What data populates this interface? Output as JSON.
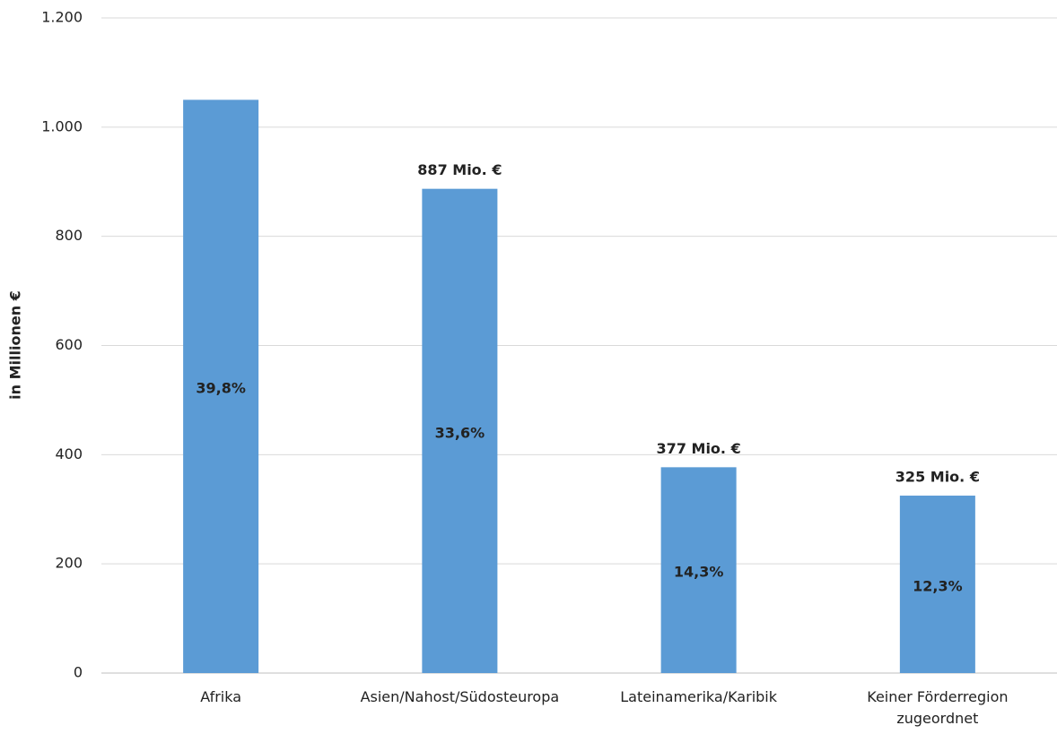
{
  "chart_data": {
    "type": "bar",
    "y_label": "in Millionen €",
    "categories": [
      "Afrika",
      "Asien/Nahost/Südosteuropa",
      "Lateinamerika/Karibik",
      "Keiner Förderregion zugeordnet"
    ],
    "values": [
      1050,
      887,
      377,
      325
    ],
    "value_labels": [
      null,
      "887 Mio. €",
      "377 Mio. €",
      "325 Mio. €"
    ],
    "share_labels": [
      "39,8%",
      "33,6%",
      "14,3%",
      "12,3%"
    ],
    "color": "#5b9bd5",
    "ylim": [
      0,
      1200
    ],
    "yticks": [
      0,
      200,
      400,
      600,
      800,
      {
        "value": 1000,
        "label": "1.000"
      },
      {
        "value": 1200,
        "label": "1.200"
      }
    ],
    "grid": true
  }
}
